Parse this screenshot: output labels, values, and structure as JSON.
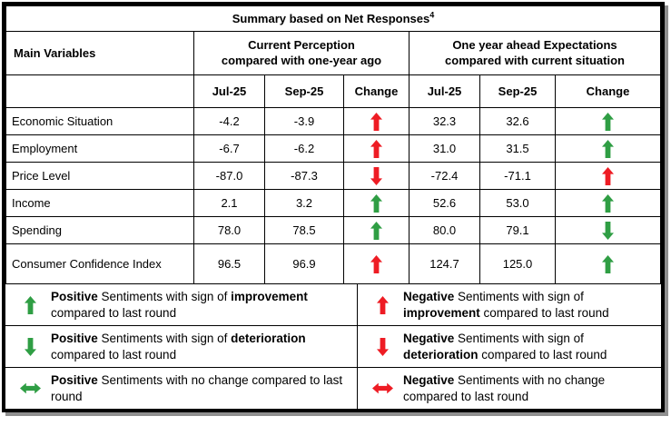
{
  "colors": {
    "green": "#2f9e44",
    "red": "#ee1c24"
  },
  "header": {
    "title": "Summary based on Net Responses",
    "footnote_marker": "4"
  },
  "table": {
    "main_col_header": "Main Variables",
    "groups": [
      {
        "line1": "Current Perception",
        "line2": "compared with one-year ago"
      },
      {
        "line1": "One year ahead Expectations",
        "line2": "compared with current situation"
      }
    ],
    "subheaders": [
      "Jul-25",
      "Sep-25",
      "Change",
      "Jul-25",
      "Sep-25",
      "Change"
    ],
    "rows": [
      {
        "label": "Economic Situation",
        "cp_jul": "-4.2",
        "cp_sep": "-3.9",
        "cp_change": "up-red",
        "ex_jul": "32.3",
        "ex_sep": "32.6",
        "ex_change": "up-green"
      },
      {
        "label": "Employment",
        "cp_jul": "-6.7",
        "cp_sep": "-6.2",
        "cp_change": "up-red",
        "ex_jul": "31.0",
        "ex_sep": "31.5",
        "ex_change": "up-green"
      },
      {
        "label": "Price Level",
        "cp_jul": "-87.0",
        "cp_sep": "-87.3",
        "cp_change": "down-red",
        "ex_jul": "-72.4",
        "ex_sep": "-71.1",
        "ex_change": "up-red"
      },
      {
        "label": "Income",
        "cp_jul": "2.1",
        "cp_sep": "3.2",
        "cp_change": "up-green",
        "ex_jul": "52.6",
        "ex_sep": "53.0",
        "ex_change": "up-green"
      },
      {
        "label": "Spending",
        "cp_jul": "78.0",
        "cp_sep": "78.5",
        "cp_change": "up-green",
        "ex_jul": "80.0",
        "ex_sep": "79.1",
        "ex_change": "down-green"
      },
      {
        "label": "Consumer Confidence Index",
        "cp_jul": "96.5",
        "cp_sep": "96.9",
        "cp_change": "up-red",
        "ex_jul": "124.7",
        "ex_sep": "125.0",
        "ex_change": "up-green"
      }
    ]
  },
  "legend": {
    "left": [
      {
        "arrow": "up-green",
        "lead_bold": "Positive",
        "mid_text": " Sentiments with sign of ",
        "mid_bold": "improvement",
        "tail_text": " compared to last round"
      },
      {
        "arrow": "down-green",
        "lead_bold": "Positive",
        "mid_text": " Sentiments with sign of ",
        "mid_bold": "deterioration",
        "tail_text": " compared to last round"
      },
      {
        "arrow": "both-green",
        "lead_bold": "Positive",
        "mid_text": " Sentiments with no change compared to last round",
        "mid_bold": "",
        "tail_text": ""
      }
    ],
    "right": [
      {
        "arrow": "up-red",
        "lead_bold": "Negative",
        "mid_text": " Sentiments with sign of ",
        "mid_bold": "improvement",
        "tail_text": " compared to last round"
      },
      {
        "arrow": "down-red",
        "lead_bold": "Negative",
        "mid_text": " Sentiments with sign of ",
        "mid_bold": "deterioration",
        "tail_text": " compared to last round"
      },
      {
        "arrow": "both-red",
        "lead_bold": "Negative",
        "mid_text": " Sentiments with no change compared to last round",
        "mid_bold": "",
        "tail_text": ""
      }
    ]
  }
}
